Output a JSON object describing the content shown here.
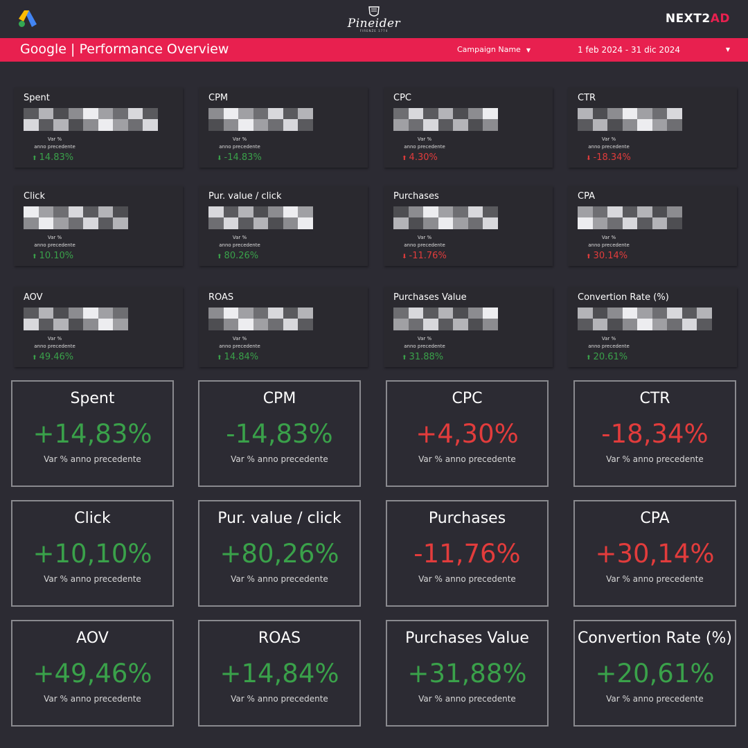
{
  "brand": {
    "center_name": "Pineider",
    "center_sub": "FIRENZE 1774",
    "right_name_a": "NEXT2",
    "right_name_b": "AD",
    "accent_color": "#e8204f"
  },
  "header": {
    "title": "Google | Performance Overview",
    "campaign_filter": "Campaign Name",
    "date_range": "1 feb 2024 - 31 dic 2024"
  },
  "small_cards": [
    {
      "title": "Spent",
      "var_line1": "Var %",
      "var_line2": "anno precedente",
      "change": "14.83%",
      "direction": "up"
    },
    {
      "title": "CPM",
      "var_line1": "Var %",
      "var_line2": "anno precedente",
      "change": "-14.83%",
      "direction": "down-good"
    },
    {
      "title": "CPC",
      "var_line1": "Var %",
      "var_line2": "anno precedente",
      "change": "4.30%",
      "direction": "up-bad"
    },
    {
      "title": "CTR",
      "var_line1": "Var %",
      "var_line2": "anno precedente",
      "change": "-18.34%",
      "direction": "down"
    },
    {
      "title": "Click",
      "var_line1": "Var %",
      "var_line2": "anno precedente",
      "change": "10.10%",
      "direction": "up"
    },
    {
      "title": "Pur. value / click",
      "var_line1": "Var %",
      "var_line2": "anno precedente",
      "change": "80.26%",
      "direction": "up"
    },
    {
      "title": "Purchases",
      "var_line1": "Var %",
      "var_line2": "anno precedente",
      "change": "-11.76%",
      "direction": "down"
    },
    {
      "title": "CPA",
      "var_line1": "Var %",
      "var_line2": "anno precedente",
      "change": "30.14%",
      "direction": "up-bad"
    },
    {
      "title": "AOV",
      "var_line1": "Var %",
      "var_line2": "anno precedente",
      "change": "49.46%",
      "direction": "up"
    },
    {
      "title": "ROAS",
      "var_line1": "Var %",
      "var_line2": "anno precedente",
      "change": "14.84%",
      "direction": "up"
    },
    {
      "title": "Purchases Value",
      "var_line1": "Var %",
      "var_line2": "anno precedente",
      "change": "31.88%",
      "direction": "up"
    },
    {
      "title": "Convertion Rate (%)",
      "var_line1": "Var %",
      "var_line2": "anno precedente",
      "change": "20.61%",
      "direction": "up"
    }
  ],
  "big_cards": [
    {
      "title": "Spent",
      "value": "+14,83%",
      "sub": "Var % anno precedente",
      "tone": "good"
    },
    {
      "title": "CPM",
      "value": "-14,83%",
      "sub": "Var % anno precedente",
      "tone": "good"
    },
    {
      "title": "CPC",
      "value": "+4,30%",
      "sub": "Var % anno precedente",
      "tone": "bad"
    },
    {
      "title": "CTR",
      "value": "-18,34%",
      "sub": "Var % anno precedente",
      "tone": "bad"
    },
    {
      "title": "Click",
      "value": "+10,10%",
      "sub": "Var % anno precedente",
      "tone": "good"
    },
    {
      "title": "Pur. value / click",
      "value": "+80,26%",
      "sub": "Var % anno precedente",
      "tone": "good"
    },
    {
      "title": "Purchases",
      "value": "-11,76%",
      "sub": "Var % anno precedente",
      "tone": "bad"
    },
    {
      "title": "CPA",
      "value": "+30,14%",
      "sub": "Var % anno precedente",
      "tone": "bad"
    },
    {
      "title": "AOV",
      "value": "+49,46%",
      "sub": "Var % anno precedente",
      "tone": "good"
    },
    {
      "title": "ROAS",
      "value": "+14,84%",
      "sub": "Var % anno precedente",
      "tone": "good"
    },
    {
      "title": "Purchases Value",
      "value": "+31,88%",
      "sub": "Var % anno precedente",
      "tone": "good"
    },
    {
      "title": "Convertion Rate (%)",
      "value": "+20,61%",
      "sub": "Var % anno precedente",
      "tone": "good"
    }
  ],
  "colors": {
    "good": "#3aa14a",
    "bad": "#e23c3c",
    "background": "#2c2b33",
    "header_band": "#e8204f"
  },
  "icons": {
    "google_ads": "google-ads-icon",
    "dropdown": "caret-down-icon",
    "arrow_up": "arrow-up-icon",
    "arrow_down": "arrow-down-icon"
  }
}
